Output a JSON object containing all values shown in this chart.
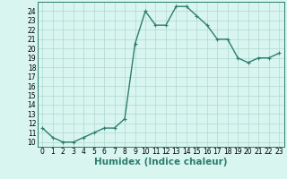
{
  "x": [
    0,
    1,
    2,
    3,
    4,
    5,
    6,
    7,
    8,
    9,
    10,
    11,
    12,
    13,
    14,
    15,
    16,
    17,
    18,
    19,
    20,
    21,
    22,
    23
  ],
  "y": [
    11.5,
    10.5,
    10.0,
    10.0,
    10.5,
    11.0,
    11.5,
    11.5,
    12.5,
    20.5,
    24.0,
    22.5,
    22.5,
    24.5,
    24.5,
    23.5,
    22.5,
    21.0,
    21.0,
    19.0,
    18.5,
    19.0,
    19.0,
    19.5
  ],
  "line_color": "#2e7d6e",
  "marker": "+",
  "marker_size": 3,
  "line_width": 1.0,
  "bg_color": "#d8f5f0",
  "grid_color": "#b0d8d0",
  "xlabel": "Humidex (Indice chaleur)",
  "xlim": [
    -0.5,
    23.5
  ],
  "ylim": [
    9.5,
    25.0
  ],
  "yticks": [
    10,
    11,
    12,
    13,
    14,
    15,
    16,
    17,
    18,
    19,
    20,
    21,
    22,
    23,
    24
  ],
  "xticks": [
    0,
    1,
    2,
    3,
    4,
    5,
    6,
    7,
    8,
    9,
    10,
    11,
    12,
    13,
    14,
    15,
    16,
    17,
    18,
    19,
    20,
    21,
    22,
    23
  ],
  "tick_label_fontsize": 5.5,
  "xlabel_fontsize": 7.5,
  "xlabel_fontweight": "bold"
}
